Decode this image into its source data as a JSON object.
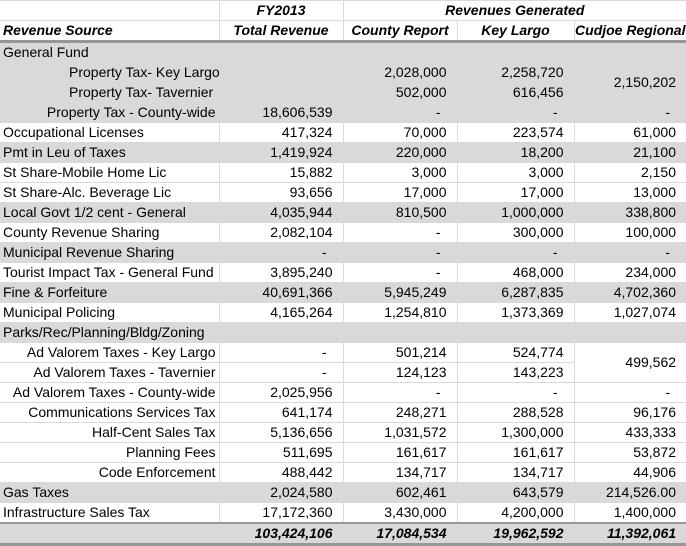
{
  "colors": {
    "band_gray": "#d9d9d9",
    "gridline": "#d9d9d9",
    "separator": "#969696",
    "text": "#000000"
  },
  "table": {
    "header": {
      "fy": "FY2013",
      "revgen": "Revenues Generated",
      "cols": [
        "Revenue Source",
        "Total Revenue",
        "County Report",
        "Key Largo",
        "Cudjoe Regional"
      ]
    },
    "rows": [
      {
        "label": "General Fund",
        "align": "left",
        "band": "gray",
        "cells": [
          "",
          "",
          "",
          ""
        ]
      },
      {
        "label": "Property Tax- Key Largo",
        "align": "indent",
        "band": "gray",
        "cells": [
          "",
          "2,028,000",
          "2,258,720",
          {
            "v": "2,150,202",
            "rowspan": 2
          }
        ]
      },
      {
        "label": "Property Tax- Tavernier",
        "align": "indent",
        "band": "gray",
        "cells": [
          "",
          "502,000",
          "616,456",
          null
        ]
      },
      {
        "label": "Property Tax - County-wide",
        "align": "right",
        "band": "gray",
        "cells": [
          "18,606,539",
          "-",
          "-",
          "-"
        ]
      },
      {
        "label": "Occupational Licenses",
        "align": "left",
        "band": "white",
        "cells": [
          "417,324",
          "70,000",
          "223,574",
          "61,000"
        ]
      },
      {
        "label": "Pmt in Leu of Taxes",
        "align": "left",
        "band": "gray",
        "cells": [
          "1,419,924",
          "220,000",
          "18,200",
          "21,100"
        ]
      },
      {
        "label": "St Share-Mobile Home Lic",
        "align": "left",
        "band": "white",
        "cells": [
          "15,882",
          "3,000",
          "3,000",
          "2,150"
        ]
      },
      {
        "label": "St Share-Alc. Beverage Lic",
        "align": "left",
        "band": "white",
        "cells": [
          "93,656",
          "17,000",
          "17,000",
          "13,000"
        ]
      },
      {
        "label": "Local Govt 1/2 cent - General",
        "align": "left",
        "band": "gray",
        "cells": [
          "4,035,944",
          "810,500",
          "1,000,000",
          "338,800"
        ]
      },
      {
        "label": "County Revenue Sharing",
        "align": "left",
        "band": "white",
        "cells": [
          "2,082,104",
          "-",
          "300,000",
          "100,000"
        ]
      },
      {
        "label": "Municipal Revenue Sharing",
        "align": "left",
        "band": "gray",
        "cells": [
          "-",
          "-",
          "-",
          "-"
        ]
      },
      {
        "label": "Tourist Impact Tax - General Fund",
        "align": "left",
        "band": "white",
        "cells": [
          "3,895,240",
          "-",
          "468,000",
          "234,000"
        ]
      },
      {
        "label": "Fine & Forfeiture",
        "align": "left",
        "band": "gray",
        "cells": [
          "40,691,366",
          "5,945,249",
          "6,287,835",
          "4,702,360"
        ]
      },
      {
        "label": "Municipal Policing",
        "align": "left",
        "band": "white",
        "cells": [
          "4,165,264",
          "1,254,810",
          "1,373,369",
          "1,027,074"
        ]
      },
      {
        "label": "Parks/Rec/Planning/Bldg/Zoning",
        "align": "left",
        "band": "gray",
        "cells": [
          "",
          "",
          "",
          ""
        ]
      },
      {
        "label": "Ad Valorem Taxes - Key Largo",
        "align": "right",
        "band": "white",
        "cells": [
          "-",
          "501,214",
          "524,774",
          {
            "v": "499,562",
            "rowspan": 2
          }
        ]
      },
      {
        "label": "Ad Valorem Taxes - Tavernier",
        "align": "right",
        "band": "white",
        "cells": [
          "-",
          "124,123",
          "143,223",
          null
        ]
      },
      {
        "label": "Ad Valorem Taxes - County-wide",
        "align": "right",
        "band": "white",
        "cells": [
          "2,025,956",
          "-",
          "-",
          "-"
        ]
      },
      {
        "label": "Communications Services Tax",
        "align": "right",
        "band": "white",
        "cells": [
          "641,174",
          "248,271",
          "288,528",
          "96,176"
        ]
      },
      {
        "label": "Half-Cent Sales Tax",
        "align": "right",
        "band": "white",
        "cells": [
          "5,136,656",
          "1,031,572",
          "1,300,000",
          "433,333"
        ]
      },
      {
        "label": "Planning Fees",
        "align": "right",
        "band": "white",
        "cells": [
          "511,695",
          "161,617",
          "161,617",
          "53,872"
        ]
      },
      {
        "label": "Code Enforcement",
        "align": "right",
        "band": "white",
        "cells": [
          "488,442",
          "134,717",
          "134,717",
          "44,906"
        ]
      },
      {
        "label": "Gas Taxes",
        "align": "left",
        "band": "gray",
        "cells": [
          "2,024,580",
          "602,461",
          "643,579",
          "214,526.00"
        ]
      },
      {
        "label": "Infrastructure Sales Tax",
        "align": "left",
        "band": "white",
        "cells": [
          "17,172,360",
          "3,430,000",
          "4,200,000",
          "1,400,000"
        ]
      }
    ],
    "totals": {
      "label": "",
      "cells": [
        "103,424,106",
        "17,084,534",
        "19,962,592",
        "11,392,061"
      ]
    }
  },
  "chart_data": {
    "type": "table",
    "title": "",
    "column_groups": [
      {
        "label": "FY2013",
        "span": [
          "Total Revenue"
        ]
      },
      {
        "label": "Revenues Generated",
        "span": [
          "County Report",
          "Key Largo",
          "Cudjoe Regional"
        ]
      }
    ],
    "columns": [
      "Revenue Source",
      "Total Revenue",
      "County Report",
      "Key Largo",
      "Cudjoe Regional"
    ],
    "rows": [
      [
        "General Fund",
        "",
        "",
        "",
        ""
      ],
      [
        "Property Tax- Key Largo",
        "",
        "2,028,000",
        "2,258,720",
        "2,150,202"
      ],
      [
        "Property Tax- Tavernier",
        "",
        "502,000",
        "616,456",
        ""
      ],
      [
        "Property Tax - County-wide",
        "18,606,539",
        "-",
        "-",
        "-"
      ],
      [
        "Occupational Licenses",
        "417,324",
        "70,000",
        "223,574",
        "61,000"
      ],
      [
        "Pmt in Leu of Taxes",
        "1,419,924",
        "220,000",
        "18,200",
        "21,100"
      ],
      [
        "St Share-Mobile Home Lic",
        "15,882",
        "3,000",
        "3,000",
        "2,150"
      ],
      [
        "St Share-Alc. Beverage Lic",
        "93,656",
        "17,000",
        "17,000",
        "13,000"
      ],
      [
        "Local Govt 1/2 cent - General",
        "4,035,944",
        "810,500",
        "1,000,000",
        "338,800"
      ],
      [
        "County Revenue Sharing",
        "2,082,104",
        "-",
        "300,000",
        "100,000"
      ],
      [
        "Municipal Revenue Sharing",
        "-",
        "-",
        "-",
        "-"
      ],
      [
        "Tourist Impact Tax - General Fund",
        "3,895,240",
        "-",
        "468,000",
        "234,000"
      ],
      [
        "Fine & Forfeiture",
        "40,691,366",
        "5,945,249",
        "6,287,835",
        "4,702,360"
      ],
      [
        "Municipal Policing",
        "4,165,264",
        "1,254,810",
        "1,373,369",
        "1,027,074"
      ],
      [
        "Parks/Rec/Planning/Bldg/Zoning",
        "",
        "",
        "",
        ""
      ],
      [
        "Ad Valorem Taxes - Key Largo",
        "-",
        "501,214",
        "524,774",
        "499,562"
      ],
      [
        "Ad Valorem Taxes - Tavernier",
        "-",
        "124,123",
        "143,223",
        ""
      ],
      [
        "Ad Valorem Taxes - County-wide",
        "2,025,956",
        "-",
        "-",
        "-"
      ],
      [
        "Communications Services Tax",
        "641,174",
        "248,271",
        "288,528",
        "96,176"
      ],
      [
        "Half-Cent Sales Tax",
        "5,136,656",
        "1,031,572",
        "1,300,000",
        "433,333"
      ],
      [
        "Planning Fees",
        "511,695",
        "161,617",
        "161,617",
        "53,872"
      ],
      [
        "Code Enforcement",
        "488,442",
        "134,717",
        "134,717",
        "44,906"
      ],
      [
        "Gas Taxes",
        "2,024,580",
        "602,461",
        "643,579",
        "214,526.00"
      ],
      [
        "Infrastructure Sales Tax",
        "17,172,360",
        "3,430,000",
        "4,200,000",
        "1,400,000"
      ]
    ],
    "totals": [
      "",
      "103,424,106",
      "17,084,534",
      "19,962,592",
      "11,392,061"
    ],
    "merged_cells": [
      {
        "column": "Cudjoe Regional",
        "rows": [
          "Property Tax- Key Largo",
          "Property Tax- Tavernier"
        ],
        "value": "2,150,202"
      },
      {
        "column": "Cudjoe Regional",
        "rows": [
          "Ad Valorem Taxes - Key Largo",
          "Ad Valorem Taxes - Tavernier"
        ],
        "value": "499,562"
      }
    ]
  }
}
